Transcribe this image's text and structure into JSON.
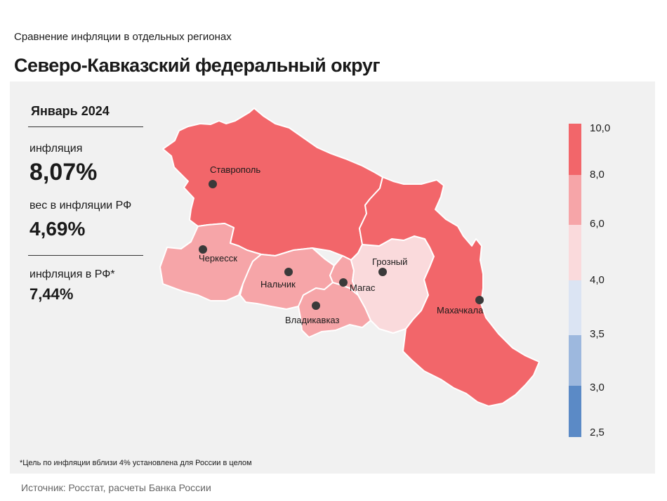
{
  "header": {
    "supertitle": "Сравнение  инфляции  в отдельных  регионах",
    "title": "Северо-Кавказский федеральный округ"
  },
  "stats": {
    "period": "Январь 2024",
    "inflation_label": "инфляция",
    "inflation_value": "8,07%",
    "weight_label": "вес в инфляции  РФ",
    "weight_value": "4,69%",
    "rf_label": "инфляция  в РФ*",
    "rf_value": "7,44%"
  },
  "map": {
    "cities": {
      "stavropol": "Ставрополь",
      "cherkessk": "Черкесск",
      "nalchik": "Нальчик",
      "vladikavkaz": "Владикавказ",
      "magas": "Магас",
      "grozny": "Грозный",
      "makhachkala": "Махачкала"
    },
    "colors": {
      "stavropol": "#f2666a",
      "kchr": "#f6a5a8",
      "kbr": "#f6a5a8",
      "osetia": "#f6a5a8",
      "ingushetia": "#f6a5a8",
      "chechnya": "#fadadc",
      "dagestan": "#f2666a",
      "border": "#ffffff"
    }
  },
  "legend": {
    "ticks": [
      "10,0",
      "8,0",
      "6,0",
      "4,0",
      "3,5",
      "3,0",
      "2,5"
    ],
    "bands": [
      {
        "from": 8.0,
        "to": 10.0,
        "color": "#f2666a"
      },
      {
        "from": 6.0,
        "to": 8.0,
        "color": "#f6a5a8"
      },
      {
        "from": 4.0,
        "to": 6.0,
        "color": "#fadadc"
      },
      {
        "from": 3.5,
        "to": 4.0,
        "color": "#dbe4f3"
      },
      {
        "from": 3.0,
        "to": 3.5,
        "color": "#9db8de"
      },
      {
        "from": 2.5,
        "to": 3.0,
        "color": "#5b8ac6"
      }
    ]
  },
  "footnote": "*Цель по инфляции вблизи 4% установлена для России в целом",
  "source": "Источник: Росстат, расчеты Банка России"
}
